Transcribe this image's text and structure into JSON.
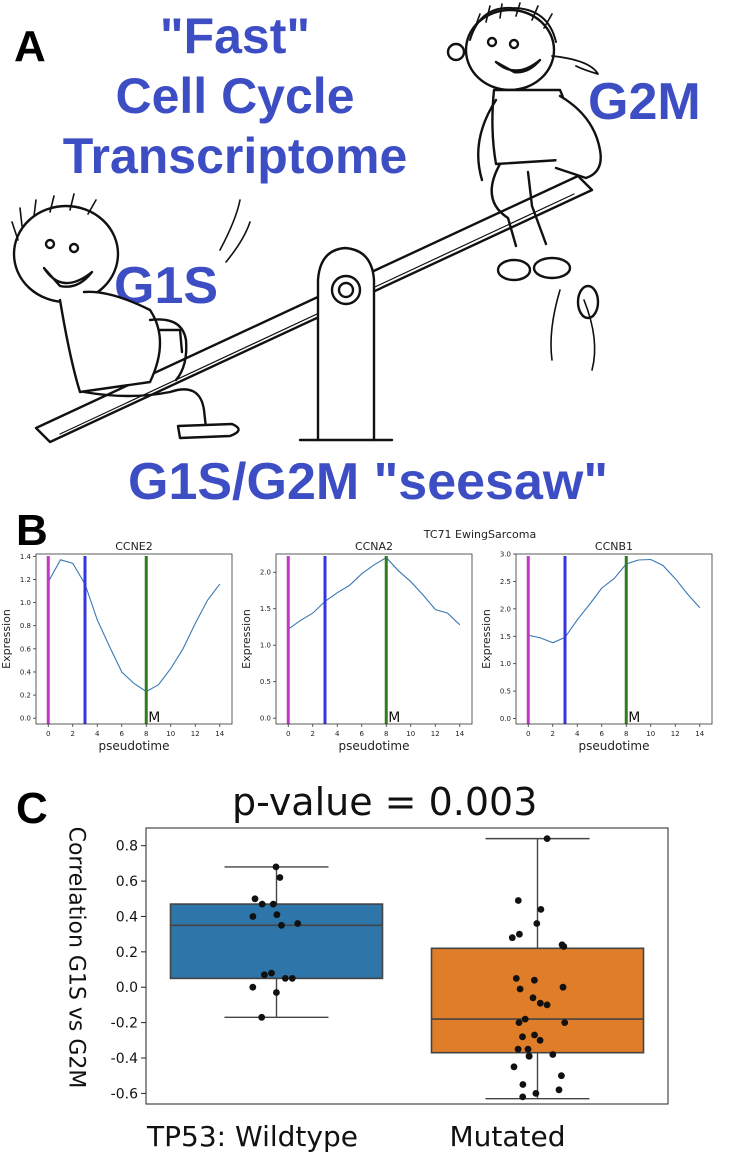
{
  "panel_a": {
    "letter": "A",
    "title_lines": [
      "\"Fast\"",
      "Cell Cycle",
      "Transcriptome"
    ],
    "label_g1s": "G1S",
    "label_g2m": "G2M",
    "caption": "G1S/G2M \"seesaw\""
  },
  "panel_b": {
    "letter": "B",
    "suptitle": "TC71 EwingSarcoma"
  },
  "panel_c": {
    "letter": "C",
    "pvalue": "p-value = 0.003",
    "ylabel": "Correlation G1S vs G2M"
  },
  "chart_data": [
    {
      "type": "line",
      "title": "CCNE2",
      "xlabel": "pseudotime",
      "ylabel": "Expression",
      "xlim": [
        -1,
        15
      ],
      "ylim": [
        -0.05,
        1.42
      ],
      "xticks": [
        0,
        2,
        4,
        6,
        8,
        10,
        12,
        14
      ],
      "xtick_labels": [
        "0",
        "2",
        "4",
        "6",
        "8",
        "10",
        "12",
        "14"
      ],
      "yticks": [
        0.0,
        0.2,
        0.4,
        0.6,
        0.8,
        1.0,
        1.2,
        1.4
      ],
      "ytick_labels": [
        "0.0",
        "0.2",
        "0.4",
        "0.6",
        "0.8",
        "1.0",
        "1.2",
        "1.4"
      ],
      "x": [
        0,
        1,
        2,
        3,
        4,
        5,
        6,
        7,
        8,
        9,
        10,
        11,
        12,
        13,
        14
      ],
      "values": [
        1.18,
        1.37,
        1.34,
        1.16,
        0.85,
        0.62,
        0.4,
        0.3,
        0.23,
        0.29,
        0.43,
        0.6,
        0.82,
        1.02,
        1.16
      ],
      "vlines": [
        {
          "x": 0,
          "color": "#c236c6"
        },
        {
          "x": 3,
          "color": "#3535e0"
        },
        {
          "x": 8,
          "color": "#2f7d1f"
        }
      ],
      "annotation": "M"
    },
    {
      "type": "line",
      "title": "CCNA2",
      "xlabel": "pseudotime",
      "ylabel": "Expression",
      "xlim": [
        -1,
        15
      ],
      "ylim": [
        -0.08,
        2.25
      ],
      "xticks": [
        0,
        2,
        4,
        6,
        8,
        10,
        12,
        14
      ],
      "xtick_labels": [
        "0",
        "2",
        "4",
        "6",
        "8",
        "10",
        "12",
        "14"
      ],
      "yticks": [
        0.0,
        0.5,
        1.0,
        1.5,
        2.0
      ],
      "ytick_labels": [
        "0.0",
        "0.5",
        "1.0",
        "1.5",
        "2.0"
      ],
      "x": [
        0,
        1,
        2,
        3,
        4,
        5,
        6,
        7,
        8,
        9,
        10,
        11,
        12,
        13,
        14
      ],
      "values": [
        1.22,
        1.34,
        1.44,
        1.6,
        1.72,
        1.82,
        1.98,
        2.1,
        2.2,
        2.02,
        1.87,
        1.69,
        1.49,
        1.44,
        1.28
      ],
      "vlines": [
        {
          "x": 0,
          "color": "#c236c6"
        },
        {
          "x": 3,
          "color": "#3535e0"
        },
        {
          "x": 8,
          "color": "#2f7d1f"
        }
      ],
      "annotation": "M"
    },
    {
      "type": "line",
      "title": "CCNB1",
      "xlabel": "pseudotime",
      "ylabel": "Expression",
      "xlim": [
        -1,
        15
      ],
      "ylim": [
        -0.1,
        3.0
      ],
      "xticks": [
        0,
        2,
        4,
        6,
        8,
        10,
        12,
        14
      ],
      "xtick_labels": [
        "0",
        "2",
        "4",
        "6",
        "8",
        "10",
        "12",
        "14"
      ],
      "yticks": [
        0.0,
        0.5,
        1.0,
        1.5,
        2.0,
        2.5,
        3.0
      ],
      "ytick_labels": [
        "0.0",
        "0.5",
        "1.0",
        "1.5",
        "2.0",
        "2.5",
        "3.0"
      ],
      "x": [
        0,
        1,
        2,
        3,
        4,
        5,
        6,
        7,
        8,
        9,
        10,
        11,
        12,
        13,
        14
      ],
      "values": [
        1.52,
        1.47,
        1.38,
        1.48,
        1.8,
        2.08,
        2.38,
        2.55,
        2.82,
        2.89,
        2.9,
        2.79,
        2.55,
        2.27,
        2.02
      ],
      "vlines": [
        {
          "x": 0,
          "color": "#c236c6"
        },
        {
          "x": 3,
          "color": "#3535e0"
        },
        {
          "x": 8,
          "color": "#2f7d1f"
        }
      ],
      "annotation": "M"
    },
    {
      "type": "box",
      "title": "p-value = 0.003",
      "ylabel": "Correlation G1S vs G2M",
      "ylim": [
        -0.66,
        0.9
      ],
      "yticks": [
        -0.6,
        -0.4,
        -0.2,
        0.0,
        0.2,
        0.4,
        0.6,
        0.8
      ],
      "ytick_labels": [
        "-0.6",
        "-0.4",
        "-0.2",
        "0.0",
        "0.2",
        "0.4",
        "0.6",
        "0.8"
      ],
      "categories": [
        "TP53: Wildtype",
        "Mutated"
      ],
      "boxes": [
        {
          "name": "TP53: Wildtype",
          "color": "#2e75aa",
          "whisker_low": -0.17,
          "q1": 0.05,
          "median": 0.35,
          "q3": 0.47,
          "whisker_high": 0.68,
          "points": [
            0.68,
            0.62,
            0.5,
            0.47,
            0.47,
            0.41,
            0.4,
            0.36,
            0.35,
            0.08,
            0.07,
            0.05,
            0.05,
            0.0,
            -0.03,
            -0.17
          ]
        },
        {
          "name": "Mutated",
          "color": "#e07d28",
          "whisker_low": -0.63,
          "q1": -0.37,
          "median": -0.18,
          "q3": 0.22,
          "whisker_high": 0.84,
          "points": [
            0.84,
            0.49,
            0.44,
            0.36,
            0.3,
            0.28,
            0.24,
            0.23,
            0.05,
            0.04,
            0.0,
            -0.01,
            -0.06,
            -0.09,
            -0.1,
            -0.18,
            -0.2,
            -0.2,
            -0.27,
            -0.28,
            -0.3,
            -0.35,
            -0.35,
            -0.38,
            -0.39,
            -0.39,
            -0.45,
            -0.5,
            -0.55,
            -0.58,
            -0.6,
            -0.62
          ]
        }
      ]
    }
  ]
}
